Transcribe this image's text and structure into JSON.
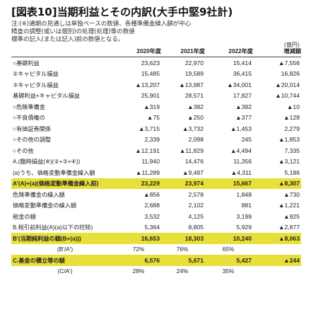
{
  "title": "[図表10]当期利益とその内訳(大手中堅9社計)",
  "notes": [
    "注:(※)通期の見通しは単独ベースの数値、各種準備金繰入額が中心",
    "精査の調整(或いは個別)の処理(処理)等の数値",
    "標準の記入(または記入)前の数値となる。"
  ],
  "unit": "(億円)",
  "table": {
    "headers": [
      "",
      "2020年度",
      "2021年度",
      "2022年度",
      "増減額"
    ],
    "rows": [
      {
        "label": "○基礎利益",
        "values": [
          "23,623",
          "22,970",
          "15,414",
          "▲7,556"
        ],
        "hl": false
      },
      {
        "label": "②キャピタル損益",
        "values": [
          "15,485",
          "19,589",
          "36,415",
          "16,826"
        ],
        "hl": false
      },
      {
        "label": "③キャピタル損益",
        "values": [
          "▲13,207",
          "▲13,987",
          "▲34,001",
          "▲20,014"
        ],
        "hl": false
      },
      {
        "label": "基礎利益+キャピタル損益",
        "values": [
          "25,901",
          "28,571",
          "17,827",
          "▲10,744"
        ],
        "hl": false
      },
      {
        "label": "○危険準備金",
        "values": [
          "▲319",
          "▲382",
          "▲392",
          "▲10"
        ],
        "hl": false
      },
      {
        "label": "○不良債権の",
        "values": [
          "▲75",
          "▲250",
          "▲377",
          "▲128"
        ],
        "hl": false
      },
      {
        "label": "○有価証券関係",
        "values": [
          "▲3,715",
          "▲3,732",
          "▲1,453",
          "2,279"
        ],
        "hl": false
      },
      {
        "label": "○その他の調整",
        "values": [
          "2,339",
          "2,098",
          "245",
          "▲1,853"
        ],
        "hl": false
      },
      {
        "label": "○その他",
        "values": [
          "▲12,191",
          "▲11,829",
          "▲4,494",
          "7,335"
        ],
        "hl": false
      },
      {
        "label": "A.(臨時損益(※)(②+③+④))",
        "values": [
          "11,940",
          "14,476",
          "11,356",
          "▲3,121"
        ],
        "hl": false
      },
      {
        "label": "(a)うち、価格変動準備金繰入額",
        "values": [
          "▲11,289",
          "▲9,497",
          "▲4,311",
          "5,186"
        ],
        "hl": false
      },
      {
        "label": "A'(A)+(a)(価格変動準備金繰入前)",
        "values": [
          "23,229",
          "23,974",
          "15,667",
          "▲8,307"
        ],
        "hl": true
      },
      {
        "label": "危険準備金の繰入額",
        "values": [
          "▲856",
          "2,578",
          "1,848",
          "▲730"
        ],
        "hl": false
      },
      {
        "label": "価格変動準備金の繰入額",
        "values": [
          "2,688",
          "2,102",
          "881",
          "▲1,221"
        ],
        "hl": false
      },
      {
        "label": "税金の額",
        "values": [
          "3,532",
          "4,125",
          "3,199",
          "▲925"
        ],
        "hl": false
      },
      {
        "label": "B.税引前利益(A)(a)以下の控除)",
        "values": [
          "5,364",
          "8,805",
          "5,929",
          "▲2,877"
        ],
        "hl": false
      },
      {
        "label": "B'(当期純利益の額(B+(a)))",
        "values": [
          "16,653",
          "18,303",
          "10,240",
          "▲8,063"
        ],
        "hl": true
      },
      {
        "label": "(B'/A')",
        "values": [
          "72%",
          "76%",
          "65%",
          ""
        ],
        "hl": false,
        "ratio": true
      },
      {
        "label": "C.基金の積立等の額",
        "values": [
          "6,576",
          "5,671",
          "5,427",
          "▲244"
        ],
        "hl": true
      },
      {
        "label": "(C/A')",
        "values": [
          "28%",
          "24%",
          "35%",
          ""
        ],
        "hl": false,
        "ratio": true
      }
    ]
  }
}
